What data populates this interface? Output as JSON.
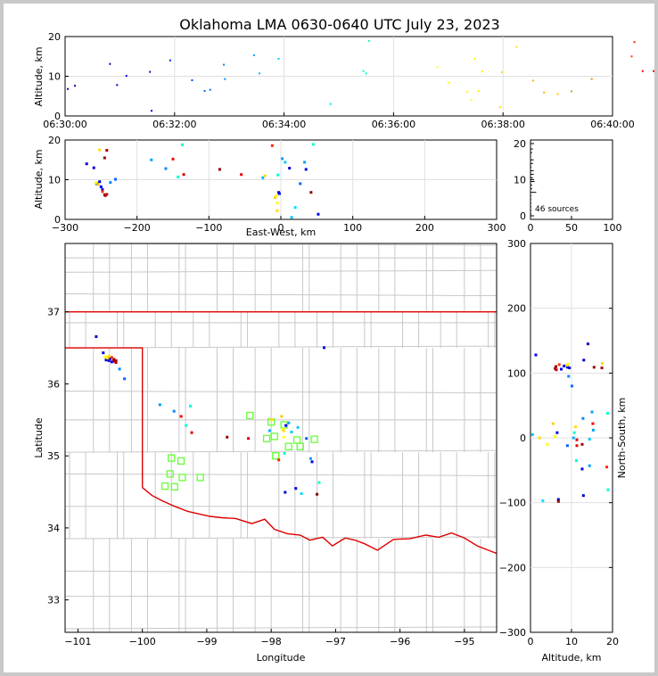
{
  "chart_data": {
    "type": "scatter",
    "title": "Oklahoma LMA 0630-0640 UTC July 23, 2023",
    "source_count_label": "46 sources",
    "colors": {
      "early": "#0000cc",
      "mid1": "#00c8ff",
      "mid2": "#ffff00",
      "late": "#ff0000",
      "last": "#8b0000",
      "station": "#66ff33",
      "state_border": "#dd0000",
      "county": "#c8c8c8"
    },
    "time_height": {
      "xlabel": "",
      "ylabel": "Altitude, km",
      "xticks": [
        "06:30:00",
        "06:32:00",
        "06:34:00",
        "06:36:00",
        "06:38:00",
        "06:40:00"
      ],
      "yticks": [
        "0",
        "10",
        "20"
      ],
      "xlim_min": [
        0,
        10
      ],
      "ylim": [
        0,
        20
      ],
      "points": [
        {
          "t": 0.05,
          "z": 6.8,
          "c": "#0000cc"
        },
        {
          "t": 0.18,
          "z": 7.6,
          "c": "#0000cc"
        },
        {
          "t": 0.82,
          "z": 13.1,
          "c": "#0000cc"
        },
        {
          "t": 0.95,
          "z": 7.8,
          "c": "#0000cc"
        },
        {
          "t": 1.12,
          "z": 10.1,
          "c": "#0000ee"
        },
        {
          "t": 1.55,
          "z": 11.1,
          "c": "#0000ee"
        },
        {
          "t": 1.58,
          "z": 1.3,
          "c": "#0000ee"
        },
        {
          "t": 1.92,
          "z": 14.0,
          "c": "#0022ff"
        },
        {
          "t": 2.32,
          "z": 9.0,
          "c": "#0044ff"
        },
        {
          "t": 2.55,
          "z": 6.3,
          "c": "#0066ff"
        },
        {
          "t": 2.65,
          "z": 6.6,
          "c": "#0066ff"
        },
        {
          "t": 2.92,
          "z": 9.3,
          "c": "#0088ff"
        },
        {
          "t": 2.9,
          "z": 12.9,
          "c": "#0088ff"
        },
        {
          "t": 3.45,
          "z": 15.3,
          "c": "#00a0ff"
        },
        {
          "t": 3.55,
          "z": 10.7,
          "c": "#00b0ff"
        },
        {
          "t": 3.9,
          "z": 14.4,
          "c": "#00c8ff"
        },
        {
          "t": 4.85,
          "z": 3.0,
          "c": "#00e0ff"
        },
        {
          "t": 5.45,
          "z": 11.3,
          "c": "#00ffcc"
        },
        {
          "t": 5.5,
          "z": 10.7,
          "c": "#00ffcc"
        },
        {
          "t": 5.55,
          "z": 18.9,
          "c": "#00ffcc"
        },
        {
          "t": 6.8,
          "z": 12.3,
          "c": "#ffff00"
        },
        {
          "t": 7.0,
          "z": 8.4,
          "c": "#ffff00"
        },
        {
          "t": 7.35,
          "z": 6.1,
          "c": "#ffff00"
        },
        {
          "t": 7.42,
          "z": 4.1,
          "c": "#ffff00"
        },
        {
          "t": 7.48,
          "z": 14.4,
          "c": "#ffff00"
        },
        {
          "t": 7.55,
          "z": 6.3,
          "c": "#ffee00"
        },
        {
          "t": 7.62,
          "z": 11.2,
          "c": "#ffee00"
        },
        {
          "t": 7.95,
          "z": 2.2,
          "c": "#ffdd00"
        },
        {
          "t": 7.98,
          "z": 11.0,
          "c": "#ffdd00"
        },
        {
          "t": 8.25,
          "z": 17.4,
          "c": "#ffdd00"
        },
        {
          "t": 8.55,
          "z": 8.9,
          "c": "#ffbb00"
        },
        {
          "t": 8.75,
          "z": 5.9,
          "c": "#ffaa00"
        },
        {
          "t": 9.25,
          "z": 6.2,
          "c": "#88cc00"
        },
        {
          "t": 9.62,
          "z": 9.3,
          "c": "#ff8800"
        },
        {
          "t": 10.35,
          "z": 15.0,
          "c": "#ff4400"
        },
        {
          "t": 10.4,
          "z": 18.6,
          "c": "#ff2200"
        },
        {
          "t": 10.55,
          "z": 11.3,
          "c": "#ff0000"
        },
        {
          "t": 10.75,
          "z": 11.3,
          "c": "#ee0000"
        },
        {
          "t": 10.92,
          "z": 7.3,
          "c": "#dd0000"
        },
        {
          "t": 11.35,
          "z": 17.4,
          "c": "#aa0000"
        },
        {
          "t": 11.38,
          "z": 15.5,
          "c": "#aa0000"
        },
        {
          "t": 11.6,
          "z": 12.6,
          "c": "#990000"
        },
        {
          "t": 11.62,
          "z": 8.4,
          "c": "#8b0000"
        },
        {
          "t": 11.64,
          "z": 7.1,
          "c": "#8b0000"
        },
        {
          "t": 11.72,
          "z": 6.0,
          "c": "#8b0000"
        },
        {
          "t": 9.0,
          "z": 5.5,
          "c": "#ffcc00"
        }
      ]
    },
    "ew_height": {
      "xlabel": "East-West, km",
      "ylabel": "Altitude, km",
      "xticks": [
        "−300",
        "−200",
        "−100",
        "0",
        "100",
        "200",
        "300"
      ],
      "yticks": [
        "0",
        "10",
        "20"
      ],
      "xlim": [
        -300,
        300
      ],
      "ylim": [
        0,
        20
      ]
    },
    "histogram": {
      "xticks": [
        "0",
        "50",
        "100"
      ],
      "yticks": [
        "0",
        "10",
        "20"
      ],
      "xlim": [
        0,
        100
      ],
      "ylim": [
        0,
        20
      ]
    },
    "map": {
      "xlabel": "Longitude",
      "ylabel": "Latitude",
      "xticks": [
        "−101",
        "−100",
        "−99",
        "−98",
        "−97",
        "−96",
        "−95"
      ],
      "yticks": [
        "33",
        "34",
        "35",
        "36",
        "37"
      ],
      "xlim": [
        -101.2,
        -94.5
      ],
      "ylim": [
        32.55,
        37.95
      ]
    },
    "ns_height": {
      "xlabel": "Altitude, km",
      "ylabel": "North-South, km",
      "xticks": [
        "0",
        "10",
        "20"
      ],
      "yticks": [
        "−300",
        "−200",
        "−100",
        "0",
        "100",
        "200",
        "300"
      ],
      "xlim": [
        0,
        20
      ],
      "ylim": [
        -300,
        300
      ]
    },
    "sources": [
      {
        "x": -256,
        "y": 109,
        "z": 9.0,
        "c": "#0000cc"
      },
      {
        "x": -252,
        "y": 108,
        "z": 9.5,
        "c": "#0000cc"
      },
      {
        "x": -250,
        "y": 111,
        "z": 8.2,
        "c": "#0000ee"
      },
      {
        "x": -248,
        "y": 106,
        "z": 7.5,
        "c": "#0000ee"
      },
      {
        "x": -245,
        "y": 110,
        "z": 6.2,
        "c": "#8b0000"
      },
      {
        "x": -244,
        "y": 107,
        "z": 6.0,
        "c": "#aa0000"
      },
      {
        "x": -242,
        "y": 105,
        "z": 6.3,
        "c": "#cc0000"
      },
      {
        "x": -248,
        "y": 113,
        "z": 7.0,
        "c": "#ff3300"
      },
      {
        "x": -254,
        "y": 112,
        "z": 8.8,
        "c": "#ffcc00"
      },
      {
        "x": -257,
        "y": 114,
        "z": 9.2,
        "c": "#ffff00"
      },
      {
        "x": -252,
        "y": 115,
        "z": 17.5,
        "c": "#ffdd00"
      },
      {
        "x": -245,
        "y": 109,
        "z": 15.5,
        "c": "#990000"
      },
      {
        "x": -242,
        "y": 108,
        "z": 17.4,
        "c": "#aa0000"
      },
      {
        "x": -260,
        "y": 120,
        "z": 13.0,
        "c": "#0000cc"
      },
      {
        "x": -270,
        "y": 145,
        "z": 14.0,
        "c": "#0000cc"
      },
      {
        "x": -237,
        "y": 95,
        "z": 9.3,
        "c": "#0088ff"
      },
      {
        "x": -230,
        "y": 80,
        "z": 10.1,
        "c": "#0066ff"
      },
      {
        "x": -180,
        "y": 40,
        "z": 15.0,
        "c": "#00a0ff"
      },
      {
        "x": -160,
        "y": 30,
        "z": 12.8,
        "c": "#0088ff"
      },
      {
        "x": -150,
        "y": 22,
        "z": 15.2,
        "c": "#ff0000"
      },
      {
        "x": -143,
        "y": 8,
        "z": 10.7,
        "c": "#00ffcc"
      },
      {
        "x": -137,
        "y": 38,
        "z": 18.8,
        "c": "#00ffcc"
      },
      {
        "x": -135,
        "y": -3,
        "z": 11.3,
        "c": "#dd0000"
      },
      {
        "x": -85,
        "y": -10,
        "z": 12.6,
        "c": "#990000"
      },
      {
        "x": -55,
        "y": -12,
        "z": 11.3,
        "c": "#ee0000"
      },
      {
        "x": -25,
        "y": 0,
        "z": 10.5,
        "c": "#00b0ff"
      },
      {
        "x": -22,
        "y": 17,
        "z": 11.0,
        "c": "#ffdd00"
      },
      {
        "x": -12,
        "y": -45,
        "z": 18.6,
        "c": "#ff2200"
      },
      {
        "x": -8,
        "y": 22,
        "z": 5.5,
        "c": "#ffcc00"
      },
      {
        "x": -6,
        "y": 2,
        "z": 6.0,
        "c": "#ffff00"
      },
      {
        "x": -5,
        "y": -10,
        "z": 4.1,
        "c": "#ffff00"
      },
      {
        "x": -5,
        "y": 0,
        "z": 2.2,
        "c": "#ffdd00"
      },
      {
        "x": -4,
        "y": -35,
        "z": 11.2,
        "c": "#00ffcc"
      },
      {
        "x": -3,
        "y": -95,
        "z": 6.8,
        "c": "#0000cc"
      },
      {
        "x": -2,
        "y": 8,
        "z": 6.5,
        "c": "#0000ee"
      },
      {
        "x": 2,
        "y": 12,
        "z": 15.3,
        "c": "#00a0ff"
      },
      {
        "x": 6,
        "y": -2,
        "z": 14.4,
        "c": "#00c8ff"
      },
      {
        "x": 12,
        "y": -89,
        "z": 12.9,
        "c": "#0000cc"
      },
      {
        "x": 15,
        "y": 5,
        "z": 0.5,
        "c": "#00c8ff"
      },
      {
        "x": 20,
        "y": -97,
        "z": 3.0,
        "c": "#00e0ff"
      },
      {
        "x": 27,
        "y": -12,
        "z": 9.0,
        "c": "#0066ff"
      },
      {
        "x": 33,
        "y": -43,
        "z": 14.4,
        "c": "#00a0ff"
      },
      {
        "x": 35,
        "y": -48,
        "z": 12.6,
        "c": "#0000ee"
      },
      {
        "x": 42,
        "y": -98,
        "z": 6.8,
        "c": "#8b0000"
      },
      {
        "x": 45,
        "y": -80,
        "z": 18.9,
        "c": "#00ffcc"
      },
      {
        "x": 52,
        "y": 128,
        "z": 1.3,
        "c": "#0000ee"
      }
    ],
    "stations": [
      [
        -98.0,
        35.47
      ],
      [
        -97.8,
        35.43
      ],
      [
        -97.6,
        35.22
      ],
      [
        -97.33,
        35.23
      ],
      [
        -97.55,
        35.13
      ],
      [
        -97.73,
        35.13
      ],
      [
        -98.07,
        35.24
      ],
      [
        -97.95,
        35.27
      ],
      [
        -98.33,
        35.56
      ],
      [
        -97.93,
        35.0
      ],
      [
        -99.4,
        34.93
      ],
      [
        -99.55,
        34.97
      ],
      [
        -99.57,
        34.75
      ],
      [
        -99.5,
        34.57
      ],
      [
        -99.38,
        34.7
      ],
      [
        -99.1,
        34.7
      ],
      [
        -99.65,
        34.58
      ]
    ]
  }
}
